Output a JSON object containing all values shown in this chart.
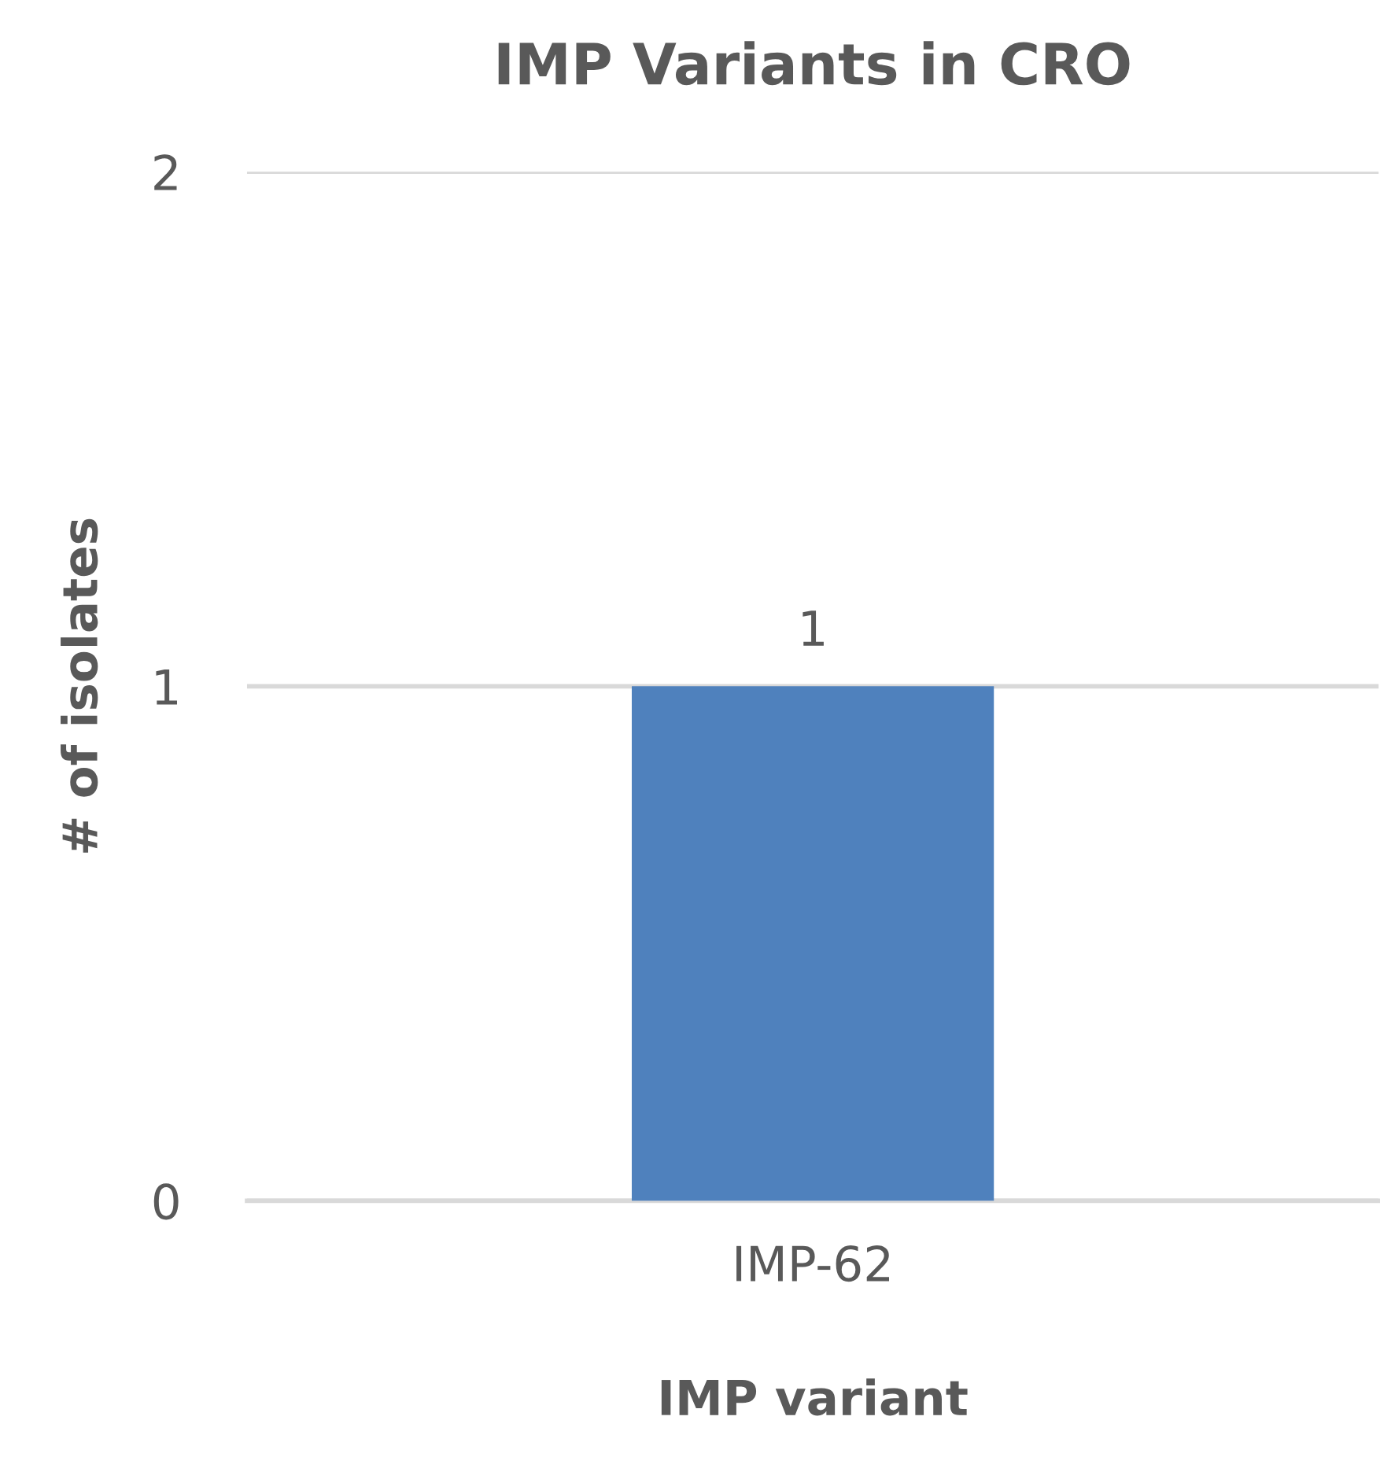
{
  "chart_data": {
    "type": "bar",
    "title": "IMP Variants in CRO",
    "xlabel": "IMP variant",
    "ylabel": "# of isolates",
    "categories": [
      "IMP-62"
    ],
    "values": [
      1
    ],
    "color": "#4f81bd",
    "ylim": [
      0,
      2
    ],
    "yticks": [
      0,
      1,
      2
    ],
    "grid": "y",
    "data_labels": true
  }
}
